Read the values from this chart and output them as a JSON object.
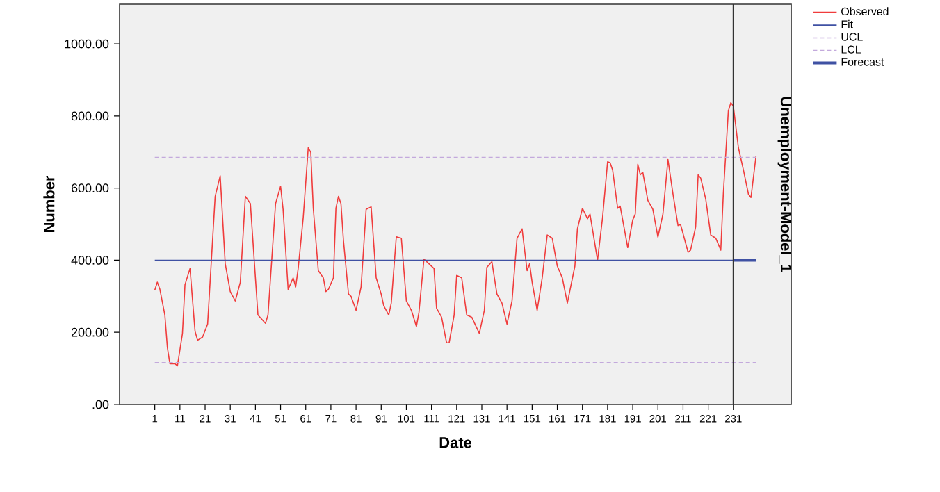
{
  "chart_data": {
    "type": "line",
    "xlabel": "Date",
    "ylabel": "Number",
    "annotations": [
      "Unemployment-Model_1"
    ],
    "xlim": [
      -13,
      254
    ],
    "ylim": [
      0,
      1110
    ],
    "xticks": [
      1,
      11,
      21,
      31,
      41,
      51,
      61,
      71,
      81,
      91,
      101,
      111,
      121,
      131,
      141,
      151,
      161,
      171,
      181,
      191,
      201,
      211,
      221,
      231
    ],
    "yticks": [
      {
        "value": 0,
        "label": ".00"
      },
      {
        "value": 200,
        "label": "200.00"
      },
      {
        "value": 400,
        "label": "400.00"
      },
      {
        "value": 600,
        "label": "600.00"
      },
      {
        "value": 800,
        "label": "800.00"
      },
      {
        "value": 1000,
        "label": "1000.00"
      }
    ],
    "grid": false,
    "legend": "top right",
    "marker": "none",
    "ref_lines": [
      {
        "axis": "x",
        "value": 231,
        "color": "#333333"
      }
    ],
    "series": [
      {
        "name": "Observed",
        "color": "#f03c3c",
        "line_style": "solid",
        "x": [
          1,
          2,
          3,
          5,
          6,
          7,
          9,
          10,
          12,
          13,
          15,
          17,
          18,
          20,
          22,
          25,
          27,
          29,
          31,
          33,
          35,
          37,
          39,
          40,
          42,
          45,
          46,
          47,
          49,
          51,
          52,
          54,
          56,
          57,
          58,
          60,
          62,
          63,
          64,
          66,
          68,
          69,
          70,
          72,
          73,
          74,
          75,
          76,
          78,
          79,
          81,
          83,
          85,
          87,
          89,
          91,
          92,
          94,
          95,
          97,
          99,
          101,
          103,
          105,
          106,
          108,
          112,
          113,
          115,
          117,
          118,
          120,
          121,
          123,
          125,
          127,
          130,
          132,
          133,
          135,
          137,
          139,
          141,
          143,
          145,
          147,
          149,
          150,
          151,
          153,
          155,
          157,
          159,
          161,
          163,
          165,
          168,
          169,
          171,
          173,
          174,
          177,
          179,
          181,
          182,
          183,
          185,
          186,
          189,
          191,
          192,
          193,
          194,
          195,
          197,
          199,
          201,
          203,
          205,
          207,
          209,
          210,
          213,
          214,
          216,
          217,
          218,
          220,
          222,
          224,
          226,
          227,
          229,
          230,
          231,
          233,
          235,
          237,
          238,
          240
        ],
        "values": [
          317,
          339,
          320,
          248,
          158,
          113,
          113,
          107,
          197,
          332,
          377,
          203,
          178,
          187,
          223,
          577,
          634,
          390,
          313,
          287,
          339,
          577,
          557,
          454,
          248,
          225,
          248,
          351,
          557,
          605,
          541,
          319,
          351,
          326,
          377,
          518,
          712,
          699,
          544,
          371,
          351,
          313,
          319,
          351,
          544,
          577,
          557,
          454,
          306,
          300,
          261,
          326,
          541,
          548,
          351,
          306,
          274,
          248,
          281,
          465,
          461,
          287,
          261,
          216,
          255,
          403,
          377,
          267,
          242,
          171,
          171,
          248,
          358,
          351,
          248,
          242,
          197,
          261,
          380,
          396,
          306,
          281,
          223,
          287,
          461,
          487,
          371,
          390,
          339,
          261,
          351,
          470,
          461,
          384,
          351,
          281,
          384,
          487,
          544,
          515,
          528,
          400,
          518,
          673,
          670,
          650,
          544,
          550,
          435,
          512,
          528,
          666,
          637,
          644,
          566,
          541,
          464,
          528,
          679,
          583,
          496,
          499,
          422,
          428,
          492,
          637,
          628,
          570,
          470,
          461,
          428,
          583,
          814,
          837,
          827,
          712,
          650,
          583,
          574,
          689
        ]
      },
      {
        "name": "Fit",
        "color": "#3f51a3",
        "line_style": "solid",
        "x": [
          1,
          231
        ],
        "values": [
          400,
          400
        ]
      },
      {
        "name": "UCL",
        "color": "#c3a9dc",
        "line_style": "dashed",
        "x": [
          1,
          240
        ],
        "values": [
          685,
          685
        ]
      },
      {
        "name": "LCL",
        "color": "#c3a9dc",
        "line_style": "dashed",
        "x": [
          1,
          240
        ],
        "values": [
          116,
          116
        ]
      },
      {
        "name": "Forecast",
        "color": "#3f51a3",
        "line_style": "solid",
        "x": [
          231,
          240
        ],
        "values": [
          400,
          400
        ]
      }
    ]
  }
}
